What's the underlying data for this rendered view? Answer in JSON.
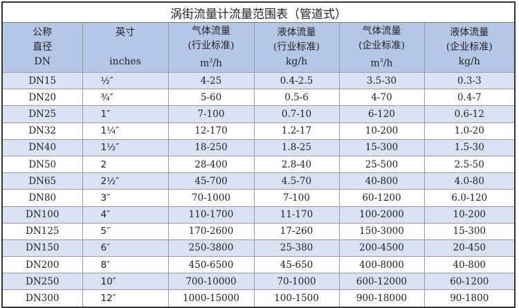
{
  "title": "涡街流量计流量范围表（管道式）",
  "headers": [
    {
      "line1": "公称",
      "line2": "直径",
      "line3": "DN"
    },
    {
      "line1": "英寸",
      "line2": "inches"
    },
    {
      "line1": "气体流量",
      "line2": "(行业标准)",
      "unit_base": "m",
      "unit_sup": "3",
      "unit_rest": "/h"
    },
    {
      "line1": "液体流量",
      "line2": "(行业标准)",
      "unit": "kg/h"
    },
    {
      "line1": "气体流量",
      "line2": "(企业标准)",
      "unit_base": "m",
      "unit_sup": "3",
      "unit_rest": "/h"
    },
    {
      "line1": "液体流量",
      "line2": "(企业标准)",
      "unit": "kg/h"
    }
  ],
  "rows": [
    [
      "DN15",
      "½″",
      "4-25",
      "0.4-2.5",
      "3.5-30",
      "0.3-3"
    ],
    [
      "DN20",
      "¾″",
      "5-60",
      "0.5-6",
      "4-70",
      "0.4-7"
    ],
    [
      "DN25",
      "1″",
      "7-100",
      "0.7-10",
      "6-120",
      "0.6-12"
    ],
    [
      "DN32",
      "1¼″",
      "12-170",
      "1.2-17",
      "10-200",
      "1.0-20"
    ],
    [
      "DN40",
      "1½″",
      "18-250",
      "1.8-25",
      "15-300",
      "1.5-30"
    ],
    [
      "DN50",
      "2",
      "28-400",
      "2.8-40",
      "25-500",
      "2.5-50"
    ],
    [
      "DN65",
      "2½″",
      "45-700",
      "4.5-70",
      "40-800",
      "4.0-80"
    ],
    [
      "DN80",
      "3″",
      "70-1000",
      "7-100",
      "60-1200",
      "6.0-120"
    ],
    [
      "DN100",
      "4″",
      "110-1700",
      "11-170",
      "100-2000",
      "10-200"
    ],
    [
      "DN125",
      "5″",
      "170-2600",
      "17-260",
      "150-3000",
      "15-300"
    ],
    [
      "DN150",
      "6″",
      "250-3800",
      "25-380",
      "200-4500",
      "20-450"
    ],
    [
      "DN200",
      "8″",
      "450-6500",
      "45-650",
      "400-8000",
      "40-800"
    ],
    [
      "DN250",
      "10″",
      "700-10000",
      "70-1000",
      "600-12000",
      "60-1200"
    ],
    [
      "DN300",
      "12″",
      "1000-15000",
      "100-1500",
      "900-18000",
      "90-1800"
    ]
  ],
  "colors": {
    "header_bg": "#b4c7e7",
    "stripe_bg": "#d9e2f3"
  }
}
